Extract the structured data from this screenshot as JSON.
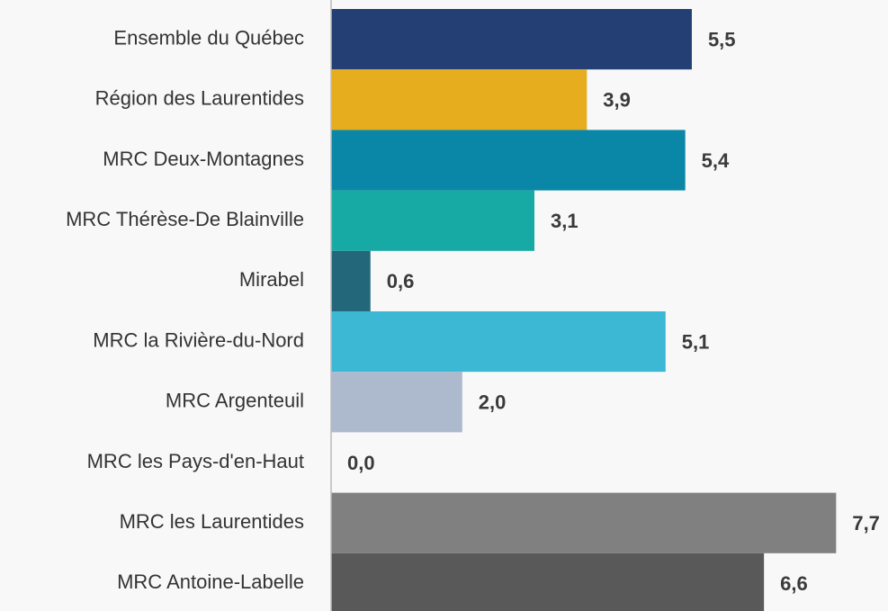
{
  "chart_data": {
    "type": "barh",
    "categories": [
      "Ensemble du Québec",
      "Région des Laurentides",
      "MRC Deux-Montagnes",
      "MRC Thérèse-De Blainville",
      "Mirabel",
      "MRC la Rivière-du-Nord",
      "MRC Argenteuil",
      "MRC les Pays-d'en-Haut",
      "MRC les Laurentides",
      "MRC Antoine-Labelle"
    ],
    "values": [
      5.5,
      3.9,
      5.4,
      3.1,
      0.6,
      5.1,
      2.0,
      0.0,
      7.7,
      6.6
    ],
    "value_labels": [
      "5,5",
      "3,9",
      "5,4",
      "3,1",
      "0,6",
      "5,1",
      "2,0",
      "0,0",
      "7,7",
      "6,6"
    ],
    "colors": [
      "#243f73",
      "#e6ad1f",
      "#0a87a6",
      "#17aaa5",
      "#23687a",
      "#3db8d4",
      "#adb9cc",
      "#b0b0b0",
      "#808080",
      "#595959"
    ]
  }
}
